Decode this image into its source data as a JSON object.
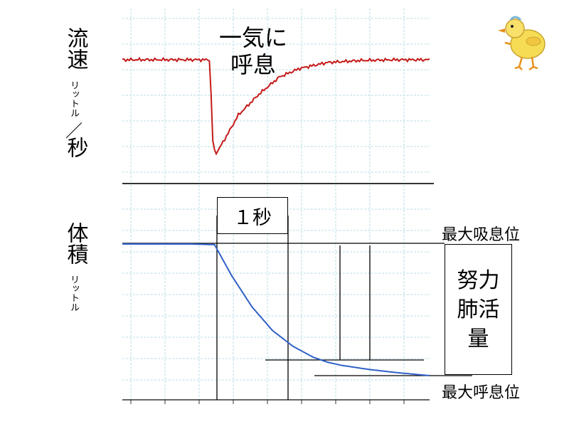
{
  "flow_label": {
    "main1": "流速",
    "unit": "リットル",
    "sep": "／",
    "main2": "秒"
  },
  "volume_label": {
    "main": "体積",
    "unit": "リットル"
  },
  "annotations": {
    "exhale_text": "一気に呼息",
    "one_second": "１秒",
    "max_inspiratory": "最大吸息位",
    "max_expiratory": "最大呼息位",
    "fvc": "努力肺活量"
  },
  "colors": {
    "flow": "#c41a1a",
    "volume": "#3060c8",
    "grid": "#b8dde6",
    "axis": "#333333"
  },
  "icons": {
    "chick": "chick-illustration-icon"
  },
  "chart_data": [
    {
      "type": "line",
      "name": "flow",
      "x": [
        0,
        0.5,
        1.0,
        1.28,
        1.33,
        1.38,
        1.5,
        1.7,
        2.0,
        2.3,
        2.6,
        3.0,
        3.5,
        4.0,
        4.5
      ],
      "y": [
        0,
        0,
        0,
        0,
        -2.6,
        -2.7,
        -2.3,
        -1.6,
        -1.0,
        -0.5,
        -0.25,
        -0.08,
        -0.02,
        0,
        0
      ]
    },
    {
      "type": "line",
      "name": "volume",
      "x": [
        0,
        0.5,
        1.0,
        1.35,
        1.6,
        1.9,
        2.2,
        2.5,
        2.8,
        3.0,
        3.2,
        3.6,
        4.0,
        4.5
      ],
      "y": [
        4.3,
        4.3,
        4.3,
        4.28,
        3.3,
        2.3,
        1.55,
        1.05,
        0.7,
        0.55,
        0.45,
        0.32,
        0.22,
        0.12
      ]
    }
  ]
}
